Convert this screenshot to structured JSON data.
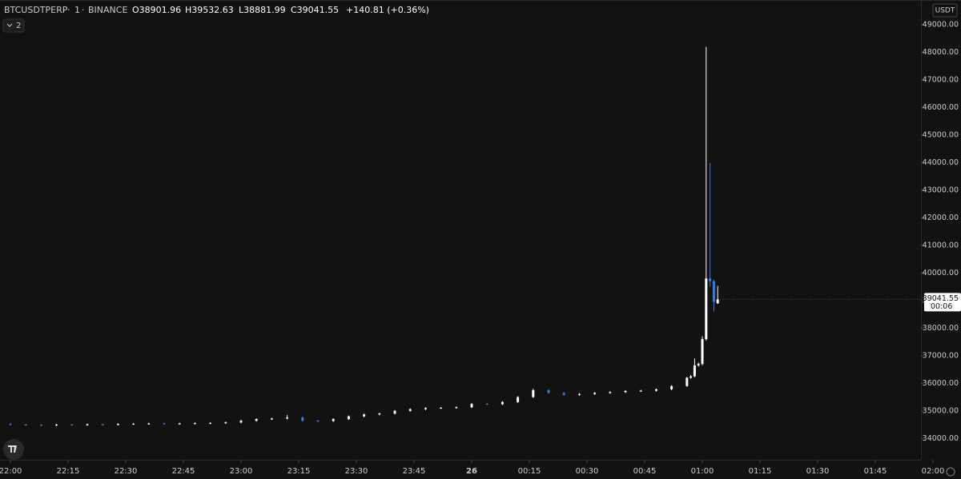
{
  "chart_data": {
    "type": "candlestick",
    "symbol": "BTCUSDTPERP",
    "interval": "1",
    "exchange": "BINANCE",
    "legend_open": "O38901.96",
    "legend_high": "H39532.63",
    "legend_low": "L38881.99",
    "legend_close": "C39041.55",
    "legend_change": "+140.81 (+0.36%)",
    "indicators_count": "2",
    "currency": "USDT",
    "countdown": "00:06",
    "up_color": "#ffffff",
    "down_color": "#2f7fe0",
    "x": [
      "22:00",
      "22:04",
      "22:08",
      "22:12",
      "22:16",
      "22:20",
      "22:24",
      "22:28",
      "22:32",
      "22:36",
      "22:40",
      "22:44",
      "22:48",
      "22:52",
      "22:56",
      "23:00",
      "23:04",
      "23:08",
      "23:12",
      "23:16",
      "23:20",
      "23:24",
      "23:28",
      "23:32",
      "23:36",
      "23:40",
      "23:44",
      "23:48",
      "23:52",
      "23:56",
      "00:00",
      "00:04",
      "00:08",
      "00:12",
      "00:16",
      "00:20",
      "00:24",
      "00:28",
      "00:32",
      "00:36",
      "00:40",
      "00:44",
      "00:48",
      "00:52",
      "00:56",
      "00:57",
      "00:58",
      "00:59",
      "01:00",
      "01:01",
      "01:02",
      "01:03",
      "01:04"
    ],
    "open": [
      34520,
      34500,
      34490,
      34480,
      34500,
      34490,
      34510,
      34500,
      34520,
      34530,
      34540,
      34530,
      34540,
      34550,
      34560,
      34580,
      34640,
      34700,
      34720,
      34760,
      34640,
      34630,
      34700,
      34800,
      34870,
      34900,
      35000,
      35060,
      35100,
      35110,
      35130,
      35250,
      35240,
      35320,
      35500,
      35750,
      35650,
      35580,
      35610,
      35650,
      35680,
      35720,
      35730,
      35780,
      35900,
      36200,
      36250,
      36650,
      36700,
      37600,
      39800,
      39700,
      38901.96
    ],
    "high": [
      34550,
      34530,
      34520,
      34530,
      34530,
      34540,
      34540,
      34550,
      34560,
      34570,
      34570,
      34570,
      34580,
      34590,
      34610,
      34670,
      34730,
      34750,
      34850,
      34790,
      34670,
      34730,
      34830,
      34900,
      34930,
      35030,
      35090,
      35130,
      35140,
      35160,
      35280,
      35280,
      35350,
      35530,
      35800,
      35780,
      35680,
      35640,
      35680,
      35710,
      35750,
      35760,
      35810,
      35930,
      36230,
      36300,
      36900,
      36750,
      37700,
      48200,
      44000,
      39750,
      39532.63
    ],
    "low": [
      34470,
      34460,
      34450,
      34450,
      34460,
      34460,
      34470,
      34470,
      34490,
      34500,
      34500,
      34500,
      34510,
      34520,
      34530,
      34550,
      34610,
      34670,
      34690,
      34610,
      34600,
      34600,
      34670,
      34770,
      34840,
      34870,
      34970,
      35030,
      35070,
      35080,
      35100,
      35210,
      35210,
      35290,
      35470,
      35620,
      35550,
      35550,
      35580,
      35620,
      35650,
      35690,
      35700,
      35750,
      35870,
      36170,
      36220,
      36600,
      36650,
      37550,
      39500,
      38600,
      38881.99
    ],
    "close": [
      34500,
      34490,
      34480,
      34500,
      34490,
      34510,
      34500,
      34520,
      34530,
      34540,
      34530,
      34540,
      34550,
      34560,
      34580,
      34640,
      34700,
      34720,
      34760,
      34640,
      34630,
      34700,
      34800,
      34870,
      34900,
      35000,
      35060,
      35100,
      35110,
      35130,
      35250,
      35240,
      35320,
      35500,
      35750,
      35650,
      35580,
      35610,
      35650,
      35680,
      35720,
      35730,
      35780,
      35900,
      36200,
      36250,
      36650,
      36700,
      37600,
      39800,
      39700,
      38950,
      39041.55
    ],
    "ylim": [
      33700,
      49500
    ],
    "yticks": [
      {
        "value": 34000,
        "label": "34000.00"
      },
      {
        "value": 35000,
        "label": "35000.00"
      },
      {
        "value": 36000,
        "label": "36000.00"
      },
      {
        "value": 37000,
        "label": "37000.00"
      },
      {
        "value": 38000,
        "label": "38000.00"
      },
      {
        "value": 39000,
        "label": "39000.00"
      },
      {
        "value": 40000,
        "label": "40000.00"
      },
      {
        "value": 41000,
        "label": "41000.00"
      },
      {
        "value": 42000,
        "label": "42000.00"
      },
      {
        "value": 43000,
        "label": "43000.00"
      },
      {
        "value": 44000,
        "label": "44000.00"
      },
      {
        "value": 45000,
        "label": "45000.00"
      },
      {
        "value": 46000,
        "label": "46000.00"
      },
      {
        "value": 47000,
        "label": "47000.00"
      },
      {
        "value": 48000,
        "label": "48000.00"
      },
      {
        "value": 49000,
        "label": "49000.00"
      }
    ],
    "xticks": [
      "22:00",
      "22:15",
      "22:30",
      "22:45",
      "23:00",
      "23:15",
      "23:30",
      "23:45",
      {
        "value": "00:00",
        "label": "26"
      },
      "00:15",
      "00:30",
      "00:45",
      "01:00",
      "01:15",
      "01:30",
      "01:45",
      "02:00"
    ]
  }
}
